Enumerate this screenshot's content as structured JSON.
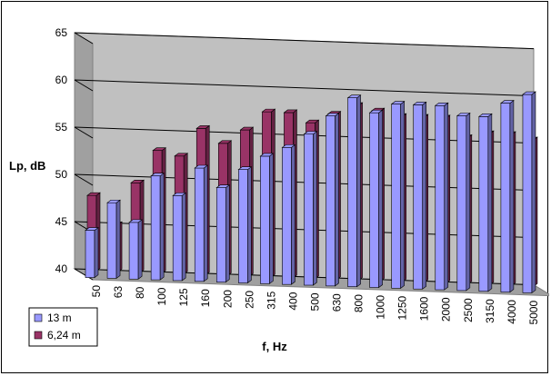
{
  "chart_data": {
    "type": "bar",
    "projection": "3d-clustered",
    "categories": [
      "50",
      "63",
      "80",
      "100",
      "125",
      "160",
      "200",
      "250",
      "315",
      "400",
      "500",
      "630",
      "800",
      "1000",
      "1250",
      "1600",
      "2000",
      "2500",
      "3150",
      "4000",
      "5000"
    ],
    "series": [
      {
        "name": "13 m",
        "color": "#9999ff",
        "values": [
          45,
          48,
          46,
          51,
          49,
          52,
          50,
          52,
          53.5,
          54.5,
          56,
          58,
          60,
          58.5,
          59.5,
          59.5,
          59.5,
          58.5,
          58.5,
          60,
          61
        ]
      },
      {
        "name": "6,24 m",
        "color": "#993366",
        "values": [
          48,
          45,
          49.5,
          53,
          52.5,
          55.5,
          54,
          55.5,
          57.5,
          57.5,
          56.5,
          57.5,
          58.5,
          58,
          57.5,
          57.5,
          57.5,
          55.5,
          56,
          56,
          55.5
        ]
      }
    ],
    "xlabel": "f, Hz",
    "ylabel": "Lp, dB",
    "ylim": [
      40,
      65
    ],
    "yticks": [
      40,
      45,
      50,
      55,
      60,
      65
    ],
    "grid": true,
    "legend": "bottom-left"
  }
}
